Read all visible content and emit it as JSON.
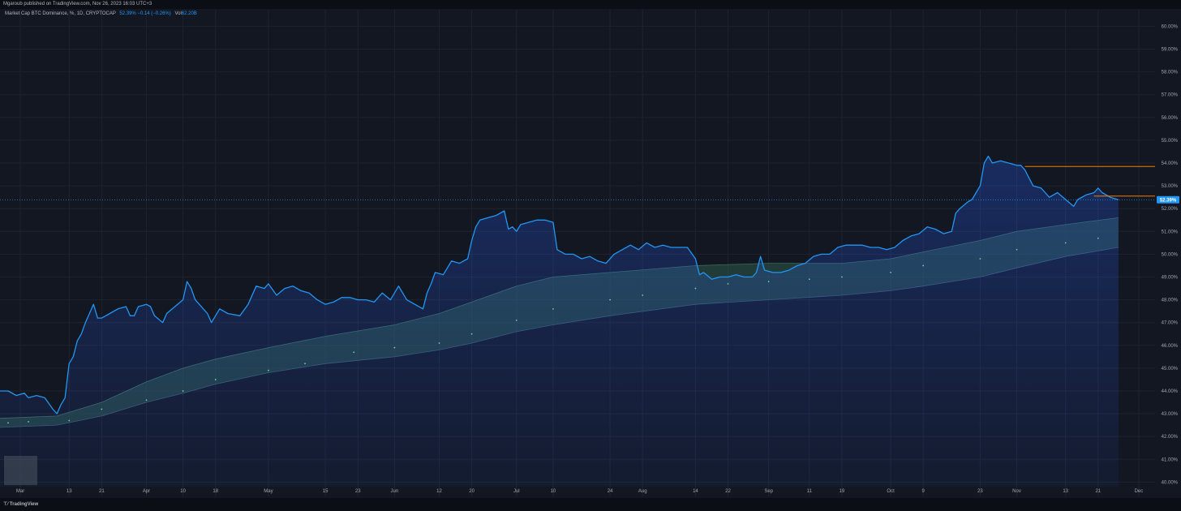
{
  "header": {
    "published": "Mgaroub published on TradingView.com, Nov 26, 2023 16:03 UTC+3"
  },
  "legend": {
    "symbol": "Market Cap BTC Dominance, %, 1D, CRYPTOCAP",
    "values": "52.39% −0.14 (−0.26%)",
    "volume_label": "Vol",
    "volume": "62.20B"
  },
  "footer": {
    "logo": "TradingView"
  },
  "colors": {
    "background": "#131722",
    "line": "#2196f3",
    "band": "#2e5a4c",
    "horizontal_lines": "#f57c00",
    "price_tag": "#2196f3"
  },
  "chart_data": {
    "type": "area",
    "title": "Market Cap BTC Dominance, %, 1D, CRYPTOCAP",
    "x_tick_labels": [
      "Mar",
      "13",
      "21",
      "Apr",
      "10",
      "18",
      "May",
      "15",
      "23",
      "Jun",
      "12",
      "20",
      "Jul",
      "10",
      "24",
      "Aug",
      "14",
      "22",
      "Sep",
      "11",
      "19",
      "Oct",
      "9",
      "23",
      "Nov",
      "13",
      "21",
      "Dec"
    ],
    "x_ticks": [
      "2023-03-01",
      "2023-03-13",
      "2023-03-21",
      "2023-04-01",
      "2023-04-10",
      "2023-04-18",
      "2023-05-01",
      "2023-05-15",
      "2023-05-23",
      "2023-06-01",
      "2023-06-12",
      "2023-06-20",
      "2023-07-01",
      "2023-07-10",
      "2023-07-24",
      "2023-08-01",
      "2023-08-14",
      "2023-08-22",
      "2023-09-01",
      "2023-09-11",
      "2023-09-19",
      "2023-10-01",
      "2023-10-09",
      "2023-10-23",
      "2023-11-01",
      "2023-11-13",
      "2023-11-21",
      "2023-12-01"
    ],
    "y_tick_labels": [
      "40.00%",
      "41.00%",
      "42.00%",
      "43.00%",
      "44.00%",
      "45.00%",
      "46.00%",
      "47.00%",
      "48.00%",
      "49.00%",
      "50.00%",
      "51.00%",
      "52.00%",
      "53.00%",
      "54.00%",
      "55.00%",
      "56.00%",
      "57.00%",
      "58.00%",
      "59.00%",
      "60.00%"
    ],
    "ylim": [
      39.8,
      60.3
    ],
    "xlim": [
      "2023-02-24",
      "2023-12-05"
    ],
    "last_price_label": "52.39%",
    "last_price": 52.39,
    "grid": true,
    "series": [
      {
        "name": "BTC Dominance",
        "style": "area",
        "points": [
          [
            "2023-02-24",
            44.0
          ],
          [
            "2023-02-26",
            44.0
          ],
          [
            "2023-02-28",
            43.8
          ],
          [
            "2023-03-02",
            43.9
          ],
          [
            "2023-03-03",
            43.7
          ],
          [
            "2023-03-05",
            43.8
          ],
          [
            "2023-03-07",
            43.7
          ],
          [
            "2023-03-09",
            43.2
          ],
          [
            "2023-03-10",
            43.0
          ],
          [
            "2023-03-11",
            43.4
          ],
          [
            "2023-03-12",
            43.7
          ],
          [
            "2023-03-13",
            45.2
          ],
          [
            "2023-03-14",
            45.5
          ],
          [
            "2023-03-15",
            46.2
          ],
          [
            "2023-03-16",
            46.5
          ],
          [
            "2023-03-17",
            47.0
          ],
          [
            "2023-03-18",
            47.4
          ],
          [
            "2023-03-19",
            47.8
          ],
          [
            "2023-03-20",
            47.2
          ],
          [
            "2023-03-21",
            47.2
          ],
          [
            "2023-03-23",
            47.4
          ],
          [
            "2023-03-25",
            47.6
          ],
          [
            "2023-03-27",
            47.7
          ],
          [
            "2023-03-28",
            47.3
          ],
          [
            "2023-03-29",
            47.3
          ],
          [
            "2023-03-30",
            47.7
          ],
          [
            "2023-04-01",
            47.8
          ],
          [
            "2023-04-02",
            47.7
          ],
          [
            "2023-04-03",
            47.3
          ],
          [
            "2023-04-05",
            47.0
          ],
          [
            "2023-04-06",
            47.4
          ],
          [
            "2023-04-08",
            47.7
          ],
          [
            "2023-04-10",
            48.0
          ],
          [
            "2023-04-11",
            48.8
          ],
          [
            "2023-04-12",
            48.5
          ],
          [
            "2023-04-13",
            48.0
          ],
          [
            "2023-04-14",
            47.8
          ],
          [
            "2023-04-16",
            47.4
          ],
          [
            "2023-04-17",
            47.0
          ],
          [
            "2023-04-18",
            47.3
          ],
          [
            "2023-04-19",
            47.6
          ],
          [
            "2023-04-21",
            47.4
          ],
          [
            "2023-04-24",
            47.3
          ],
          [
            "2023-04-26",
            47.8
          ],
          [
            "2023-04-28",
            48.6
          ],
          [
            "2023-04-30",
            48.5
          ],
          [
            "2023-05-01",
            48.7
          ],
          [
            "2023-05-03",
            48.2
          ],
          [
            "2023-05-05",
            48.5
          ],
          [
            "2023-05-07",
            48.6
          ],
          [
            "2023-05-09",
            48.4
          ],
          [
            "2023-05-11",
            48.3
          ],
          [
            "2023-05-13",
            48.0
          ],
          [
            "2023-05-15",
            47.8
          ],
          [
            "2023-05-17",
            47.9
          ],
          [
            "2023-05-19",
            48.1
          ],
          [
            "2023-05-21",
            48.1
          ],
          [
            "2023-05-23",
            48.0
          ],
          [
            "2023-05-25",
            48.0
          ],
          [
            "2023-05-27",
            47.9
          ],
          [
            "2023-05-29",
            48.3
          ],
          [
            "2023-05-31",
            48.0
          ],
          [
            "2023-06-02",
            48.6
          ],
          [
            "2023-06-04",
            48.0
          ],
          [
            "2023-06-06",
            47.8
          ],
          [
            "2023-06-08",
            47.6
          ],
          [
            "2023-06-09",
            48.3
          ],
          [
            "2023-06-10",
            48.7
          ],
          [
            "2023-06-11",
            49.2
          ],
          [
            "2023-06-13",
            49.1
          ],
          [
            "2023-06-15",
            49.7
          ],
          [
            "2023-06-17",
            49.6
          ],
          [
            "2023-06-19",
            49.8
          ],
          [
            "2023-06-20",
            50.6
          ],
          [
            "2023-06-21",
            51.2
          ],
          [
            "2023-06-22",
            51.5
          ],
          [
            "2023-06-24",
            51.6
          ],
          [
            "2023-06-26",
            51.7
          ],
          [
            "2023-06-28",
            51.9
          ],
          [
            "2023-06-29",
            51.1
          ],
          [
            "2023-06-30",
            51.2
          ],
          [
            "2023-07-01",
            51.0
          ],
          [
            "2023-07-02",
            51.3
          ],
          [
            "2023-07-04",
            51.4
          ],
          [
            "2023-07-06",
            51.5
          ],
          [
            "2023-07-08",
            51.5
          ],
          [
            "2023-07-10",
            51.4
          ],
          [
            "2023-07-11",
            50.2
          ],
          [
            "2023-07-13",
            50.0
          ],
          [
            "2023-07-15",
            50.0
          ],
          [
            "2023-07-17",
            49.8
          ],
          [
            "2023-07-19",
            49.9
          ],
          [
            "2023-07-21",
            49.7
          ],
          [
            "2023-07-23",
            49.6
          ],
          [
            "2023-07-25",
            50.0
          ],
          [
            "2023-07-27",
            50.2
          ],
          [
            "2023-07-29",
            50.4
          ],
          [
            "2023-07-31",
            50.2
          ],
          [
            "2023-08-02",
            50.5
          ],
          [
            "2023-08-04",
            50.3
          ],
          [
            "2023-08-06",
            50.4
          ],
          [
            "2023-08-08",
            50.3
          ],
          [
            "2023-08-10",
            50.3
          ],
          [
            "2023-08-12",
            50.3
          ],
          [
            "2023-08-14",
            49.8
          ],
          [
            "2023-08-15",
            49.1
          ],
          [
            "2023-08-16",
            49.2
          ],
          [
            "2023-08-18",
            48.9
          ],
          [
            "2023-08-20",
            49.0
          ],
          [
            "2023-08-22",
            49.0
          ],
          [
            "2023-08-24",
            49.1
          ],
          [
            "2023-08-26",
            49.0
          ],
          [
            "2023-08-28",
            49.0
          ],
          [
            "2023-08-29",
            49.2
          ],
          [
            "2023-08-30",
            49.9
          ],
          [
            "2023-08-31",
            49.3
          ],
          [
            "2023-09-02",
            49.2
          ],
          [
            "2023-09-04",
            49.2
          ],
          [
            "2023-09-06",
            49.3
          ],
          [
            "2023-09-08",
            49.5
          ],
          [
            "2023-09-10",
            49.6
          ],
          [
            "2023-09-12",
            49.9
          ],
          [
            "2023-09-14",
            50.0
          ],
          [
            "2023-09-16",
            50.0
          ],
          [
            "2023-09-18",
            50.3
          ],
          [
            "2023-09-20",
            50.4
          ],
          [
            "2023-09-22",
            50.4
          ],
          [
            "2023-09-24",
            50.4
          ],
          [
            "2023-09-26",
            50.3
          ],
          [
            "2023-09-28",
            50.3
          ],
          [
            "2023-09-30",
            50.2
          ],
          [
            "2023-10-02",
            50.3
          ],
          [
            "2023-10-04",
            50.6
          ],
          [
            "2023-10-06",
            50.8
          ],
          [
            "2023-10-08",
            50.9
          ],
          [
            "2023-10-10",
            51.2
          ],
          [
            "2023-10-12",
            51.1
          ],
          [
            "2023-10-14",
            50.9
          ],
          [
            "2023-10-16",
            51.0
          ],
          [
            "2023-10-17",
            51.8
          ],
          [
            "2023-10-18",
            52.0
          ],
          [
            "2023-10-20",
            52.3
          ],
          [
            "2023-10-21",
            52.4
          ],
          [
            "2023-10-22",
            52.7
          ],
          [
            "2023-10-23",
            53.0
          ],
          [
            "2023-10-24",
            54.0
          ],
          [
            "2023-10-25",
            54.3
          ],
          [
            "2023-10-26",
            54.0
          ],
          [
            "2023-10-28",
            54.1
          ],
          [
            "2023-10-30",
            54.0
          ],
          [
            "2023-11-01",
            53.9
          ],
          [
            "2023-11-02",
            53.9
          ],
          [
            "2023-11-03",
            53.7
          ],
          [
            "2023-11-05",
            53.0
          ],
          [
            "2023-11-07",
            52.9
          ],
          [
            "2023-11-08",
            52.7
          ],
          [
            "2023-11-09",
            52.5
          ],
          [
            "2023-11-11",
            52.7
          ],
          [
            "2023-11-13",
            52.4
          ],
          [
            "2023-11-15",
            52.1
          ],
          [
            "2023-11-16",
            52.4
          ],
          [
            "2023-11-18",
            52.6
          ],
          [
            "2023-11-20",
            52.7
          ],
          [
            "2023-11-21",
            52.9
          ],
          [
            "2023-11-22",
            52.7
          ],
          [
            "2023-11-24",
            52.5
          ],
          [
            "2023-11-26",
            52.39
          ]
        ]
      },
      {
        "name": "",
        "style": "band_upper",
        "points": [
          [
            "2023-02-24",
            42.8
          ],
          [
            "2023-03-10",
            42.9
          ],
          [
            "2023-03-21",
            43.5
          ],
          [
            "2023-04-01",
            44.4
          ],
          [
            "2023-04-10",
            45.0
          ],
          [
            "2023-04-18",
            45.4
          ],
          [
            "2023-05-01",
            45.9
          ],
          [
            "2023-05-15",
            46.4
          ],
          [
            "2023-06-01",
            46.9
          ],
          [
            "2023-06-12",
            47.4
          ],
          [
            "2023-06-20",
            47.9
          ],
          [
            "2023-07-01",
            48.6
          ],
          [
            "2023-07-10",
            49.0
          ],
          [
            "2023-07-24",
            49.2
          ],
          [
            "2023-08-14",
            49.5
          ],
          [
            "2023-09-01",
            49.6
          ],
          [
            "2023-09-19",
            49.6
          ],
          [
            "2023-10-01",
            49.8
          ],
          [
            "2023-10-09",
            50.1
          ],
          [
            "2023-10-23",
            50.6
          ],
          [
            "2023-11-01",
            51.0
          ],
          [
            "2023-11-13",
            51.3
          ],
          [
            "2023-11-26",
            51.6
          ]
        ]
      },
      {
        "name": "",
        "style": "band_lower",
        "points": [
          [
            "2023-02-24",
            42.4
          ],
          [
            "2023-03-10",
            42.5
          ],
          [
            "2023-03-21",
            42.9
          ],
          [
            "2023-04-01",
            43.5
          ],
          [
            "2023-04-10",
            43.9
          ],
          [
            "2023-04-18",
            44.3
          ],
          [
            "2023-05-01",
            44.8
          ],
          [
            "2023-05-15",
            45.2
          ],
          [
            "2023-06-01",
            45.5
          ],
          [
            "2023-06-12",
            45.8
          ],
          [
            "2023-06-20",
            46.1
          ],
          [
            "2023-07-01",
            46.6
          ],
          [
            "2023-07-10",
            46.9
          ],
          [
            "2023-07-24",
            47.3
          ],
          [
            "2023-08-14",
            47.8
          ],
          [
            "2023-09-01",
            48.0
          ],
          [
            "2023-09-19",
            48.2
          ],
          [
            "2023-10-01",
            48.4
          ],
          [
            "2023-10-09",
            48.6
          ],
          [
            "2023-10-23",
            49.0
          ],
          [
            "2023-11-01",
            49.4
          ],
          [
            "2023-11-13",
            49.9
          ],
          [
            "2023-11-26",
            50.3
          ]
        ]
      },
      {
        "name": "",
        "style": "dots",
        "points": [
          [
            "2023-02-26",
            42.6
          ],
          [
            "2023-03-03",
            42.65
          ],
          [
            "2023-03-13",
            42.7
          ],
          [
            "2023-03-21",
            43.2
          ],
          [
            "2023-04-01",
            43.6
          ],
          [
            "2023-04-10",
            44.0
          ],
          [
            "2023-04-18",
            44.5
          ],
          [
            "2023-05-01",
            44.9
          ],
          [
            "2023-05-10",
            45.2
          ],
          [
            "2023-05-22",
            45.7
          ],
          [
            "2023-06-01",
            45.9
          ],
          [
            "2023-06-12",
            46.1
          ],
          [
            "2023-06-20",
            46.5
          ],
          [
            "2023-07-01",
            47.1
          ],
          [
            "2023-07-10",
            47.6
          ],
          [
            "2023-07-24",
            48.0
          ],
          [
            "2023-08-01",
            48.2
          ],
          [
            "2023-08-14",
            48.5
          ],
          [
            "2023-08-22",
            48.7
          ],
          [
            "2023-09-01",
            48.8
          ],
          [
            "2023-09-11",
            48.9
          ],
          [
            "2023-09-19",
            49.0
          ],
          [
            "2023-10-01",
            49.2
          ],
          [
            "2023-10-09",
            49.5
          ],
          [
            "2023-10-23",
            49.8
          ],
          [
            "2023-11-01",
            50.2
          ],
          [
            "2023-11-13",
            50.5
          ],
          [
            "2023-11-21",
            50.7
          ]
        ]
      }
    ],
    "horizontal_lines": [
      {
        "value": 53.85,
        "from": "2023-11-03",
        "color": "#f57c00"
      },
      {
        "value": 52.55,
        "from": "2023-11-20",
        "color": "#f57c00"
      }
    ]
  }
}
